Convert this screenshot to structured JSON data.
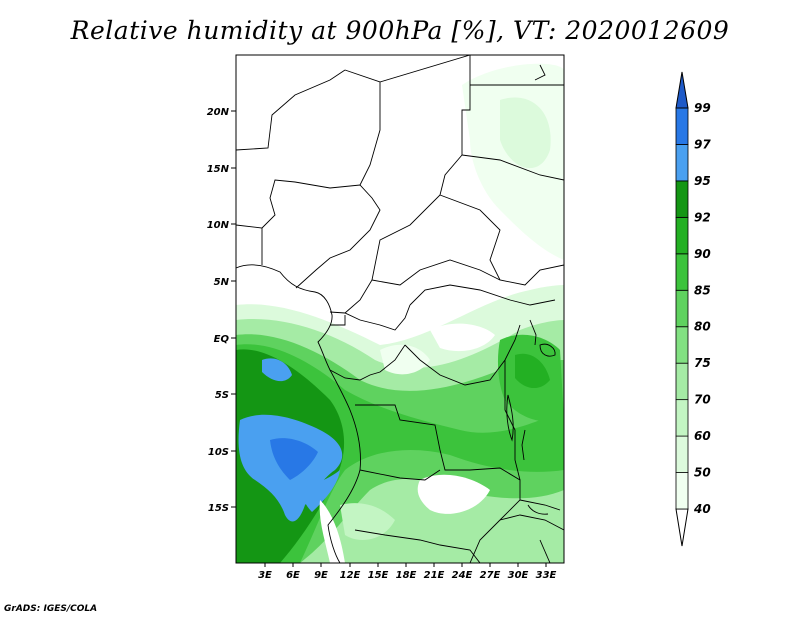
{
  "title": "Relative humidity at 900hPa [%], VT: 2020012609",
  "credit": "GrADS: IGES/COLA",
  "map": {
    "lon_labels": [
      "3E",
      "6E",
      "9E",
      "12E",
      "15E",
      "18E",
      "21E",
      "24E",
      "27E",
      "30E",
      "33E"
    ],
    "lat_labels": [
      "20N",
      "15N",
      "10N",
      "5N",
      "EQ",
      "5S",
      "10S",
      "15S"
    ]
  },
  "colorbar": {
    "levels": [
      "40",
      "50",
      "60",
      "70",
      "75",
      "80",
      "85",
      "90",
      "92",
      "95",
      "97",
      "99"
    ],
    "colors": [
      "#f0fff0",
      "#dcfadc",
      "#c3f5c3",
      "#a5eba5",
      "#82e182",
      "#5fd25f",
      "#3cc33c",
      "#23b023",
      "#149614",
      "#4aa0f0",
      "#2878e6",
      "#1e5ac8"
    ],
    "under_color": "#ffffff"
  }
}
